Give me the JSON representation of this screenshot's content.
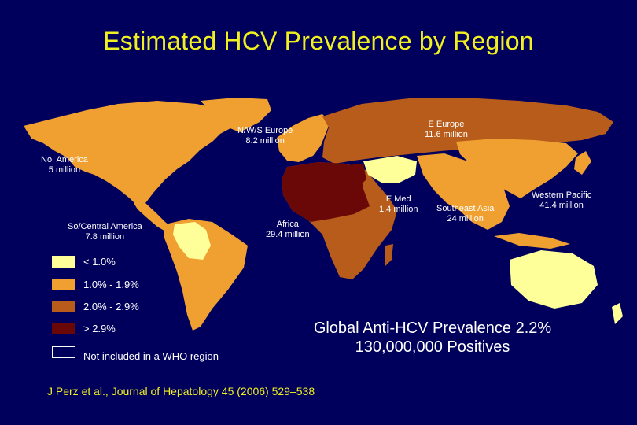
{
  "title": "Estimated HCV Prevalence by Region",
  "colors": {
    "background": "#00005c",
    "title": "#f0f020",
    "lt1": "#ffff99",
    "p1to1_9": "#f0a030",
    "p2to2_9": "#b85c1c",
    "gt2_9": "#6a0808",
    "not_included": "#00005c"
  },
  "regions": [
    {
      "name": "N/W/S Europe",
      "value": "8.2 million"
    },
    {
      "name": "E Europe",
      "value": "11.6 million"
    },
    {
      "name": "No. America",
      "value": "5 million"
    },
    {
      "name": "E Med",
      "value": "1.4 million"
    },
    {
      "name": "Western Pacific",
      "value": "41.4  million"
    },
    {
      "name": "So/Central  America",
      "value": "7.8 million"
    },
    {
      "name": "Africa",
      "value": "29.4 million"
    },
    {
      "name": "Southeast Asia",
      "value": "24 million"
    }
  ],
  "legend": [
    {
      "label": "< 1.0%",
      "color": "#ffff99"
    },
    {
      "label": "1.0% - 1.9%",
      "color": "#f0a030"
    },
    {
      "label": "2.0% - 2.9%",
      "color": "#b85c1c"
    },
    {
      "label": "> 2.9%",
      "color": "#6a0808"
    },
    {
      "label": "Not  included in a WHO region",
      "color": "#00005c"
    }
  ],
  "global": {
    "line1": "Global Anti-HCV Prevalence 2.2%",
    "line2": "130,000,000 Positives"
  },
  "citation": "J Perz et al., Journal of Hepatology 45 (2006) 529–538"
}
